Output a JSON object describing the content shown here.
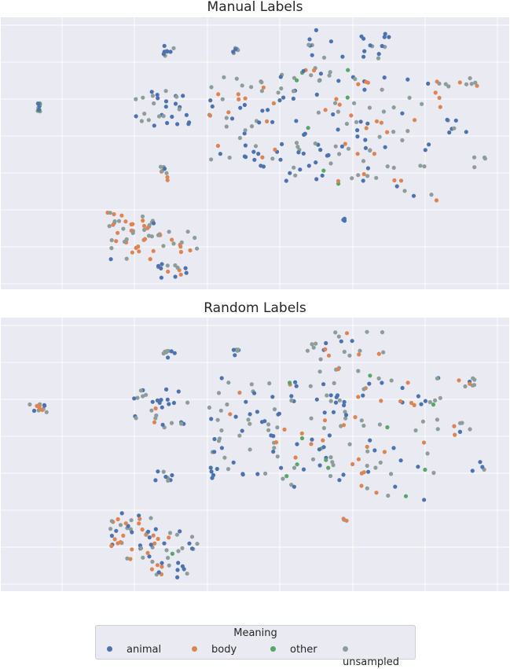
{
  "chart_data": [
    {
      "type": "scatter",
      "title": "Manual Labels",
      "xlabel": "",
      "ylabel": "",
      "grid": true,
      "clusters": [
        {
          "x": [
            46,
            50
          ],
          "y": [
            131,
            142
          ],
          "n": 12,
          "mix": [
            2,
            0,
            1,
            3
          ]
        },
        {
          "x": [
            168,
            240
          ],
          "y": [
            112,
            160
          ],
          "n": 30,
          "mix": [
            3,
            0,
            0,
            2
          ]
        },
        {
          "x": [
            205,
            222
          ],
          "y": [
            58,
            72
          ],
          "n": 8,
          "mix": [
            3,
            0,
            0,
            2
          ]
        },
        {
          "x": [
            295,
            303
          ],
          "y": [
            60,
            70
          ],
          "n": 6,
          "mix": [
            3,
            0,
            0,
            2
          ]
        },
        {
          "x": [
            390,
            495
          ],
          "y": [
            38,
            75
          ],
          "n": 22,
          "mix": [
            3,
            0,
            0,
            2
          ]
        },
        {
          "x": [
            265,
            360
          ],
          "y": [
            95,
            220
          ],
          "n": 60,
          "mix": [
            3,
            1,
            0,
            4
          ]
        },
        {
          "x": [
            360,
            470
          ],
          "y": [
            85,
            235
          ],
          "n": 80,
          "mix": [
            3,
            2,
            1,
            4
          ]
        },
        {
          "x": [
            450,
            560
          ],
          "y": [
            95,
            255
          ],
          "n": 45,
          "mix": [
            2,
            3,
            0,
            3
          ]
        },
        {
          "x": [
            555,
            610
          ],
          "y": [
            95,
            110
          ],
          "n": 10,
          "mix": [
            0,
            2,
            0,
            2
          ]
        },
        {
          "x": [
            568,
            600
          ],
          "y": [
            150,
            172
          ],
          "n": 7,
          "mix": [
            2,
            1,
            0,
            2
          ]
        },
        {
          "x": [
            600,
            617
          ],
          "y": [
            200,
            218
          ],
          "n": 4,
          "mix": [
            0,
            0,
            0,
            1
          ]
        },
        {
          "x": [
            196,
            218
          ],
          "y": [
            212,
            232
          ],
          "n": 8,
          "mix": [
            2,
            1,
            0,
            2
          ]
        },
        {
          "x": [
            435,
            442
          ],
          "y": [
            276,
            282
          ],
          "n": 3,
          "mix": [
            2,
            0,
            0,
            1
          ]
        },
        {
          "x": [
            136,
            200
          ],
          "y": [
            270,
            330
          ],
          "n": 45,
          "mix": [
            1,
            3,
            0,
            3
          ]
        },
        {
          "x": [
            200,
            250
          ],
          "y": [
            293,
            330
          ],
          "n": 16,
          "mix": [
            0,
            2,
            0,
            3
          ]
        },
        {
          "x": [
            188,
            240
          ],
          "y": [
            334,
            354
          ],
          "n": 14,
          "mix": [
            1,
            1,
            0,
            2
          ]
        }
      ]
    },
    {
      "type": "scatter",
      "title": "Random Labels",
      "xlabel": "",
      "ylabel": "",
      "grid": true,
      "clusters": [
        {
          "x": [
            36,
            60
          ],
          "y": [
            514,
            530
          ],
          "n": 12,
          "mix": [
            1,
            2,
            0,
            2
          ]
        },
        {
          "x": [
            168,
            240
          ],
          "y": [
            495,
            545
          ],
          "n": 30,
          "mix": [
            2,
            1,
            0,
            2
          ]
        },
        {
          "x": [
            205,
            222
          ],
          "y": [
            442,
            456
          ],
          "n": 8,
          "mix": [
            3,
            0,
            0,
            2
          ]
        },
        {
          "x": [
            295,
            303
          ],
          "y": [
            444,
            454
          ],
          "n": 6,
          "mix": [
            2,
            0,
            1,
            2
          ]
        },
        {
          "x": [
            390,
            495
          ],
          "y": [
            420,
            458
          ],
          "n": 22,
          "mix": [
            2,
            1,
            0,
            3
          ]
        },
        {
          "x": [
            265,
            360
          ],
          "y": [
            478,
            612
          ],
          "n": 60,
          "mix": [
            3,
            1,
            0,
            3
          ]
        },
        {
          "x": [
            360,
            470
          ],
          "y": [
            466,
            620
          ],
          "n": 80,
          "mix": [
            3,
            2,
            1,
            4
          ]
        },
        {
          "x": [
            450,
            560
          ],
          "y": [
            480,
            640
          ],
          "n": 45,
          "mix": [
            2,
            2,
            1,
            3
          ]
        },
        {
          "x": [
            555,
            610
          ],
          "y": [
            480,
            492
          ],
          "n": 10,
          "mix": [
            1,
            1,
            0,
            2
          ]
        },
        {
          "x": [
            568,
            600
          ],
          "y": [
            536,
            556
          ],
          "n": 7,
          "mix": [
            1,
            2,
            0,
            2
          ]
        },
        {
          "x": [
            600,
            617
          ],
          "y": [
            584,
            602
          ],
          "n": 4,
          "mix": [
            1,
            0,
            0,
            1
          ]
        },
        {
          "x": [
            196,
            218
          ],
          "y": [
            596,
            612
          ],
          "n": 8,
          "mix": [
            2,
            0,
            0,
            2
          ]
        },
        {
          "x": [
            435,
            442
          ],
          "y": [
            659,
            664
          ],
          "n": 3,
          "mix": [
            0,
            2,
            0,
            1
          ]
        },
        {
          "x": [
            136,
            200
          ],
          "y": [
            652,
            715
          ],
          "n": 45,
          "mix": [
            2,
            2,
            0,
            3
          ]
        },
        {
          "x": [
            200,
            250
          ],
          "y": [
            674,
            712
          ],
          "n": 16,
          "mix": [
            1,
            1,
            1,
            3
          ]
        },
        {
          "x": [
            188,
            240
          ],
          "y": [
            716,
            737
          ],
          "n": 14,
          "mix": [
            2,
            1,
            0,
            2
          ]
        }
      ]
    }
  ],
  "legend": {
    "title": "Meaning",
    "items": [
      {
        "label": "animal",
        "color": "#4c72b0"
      },
      {
        "label": "body",
        "color": "#dd8452"
      },
      {
        "label": "other",
        "color": "#55a868"
      },
      {
        "label": "unsampled",
        "color": "#8c9d9a"
      }
    ]
  }
}
